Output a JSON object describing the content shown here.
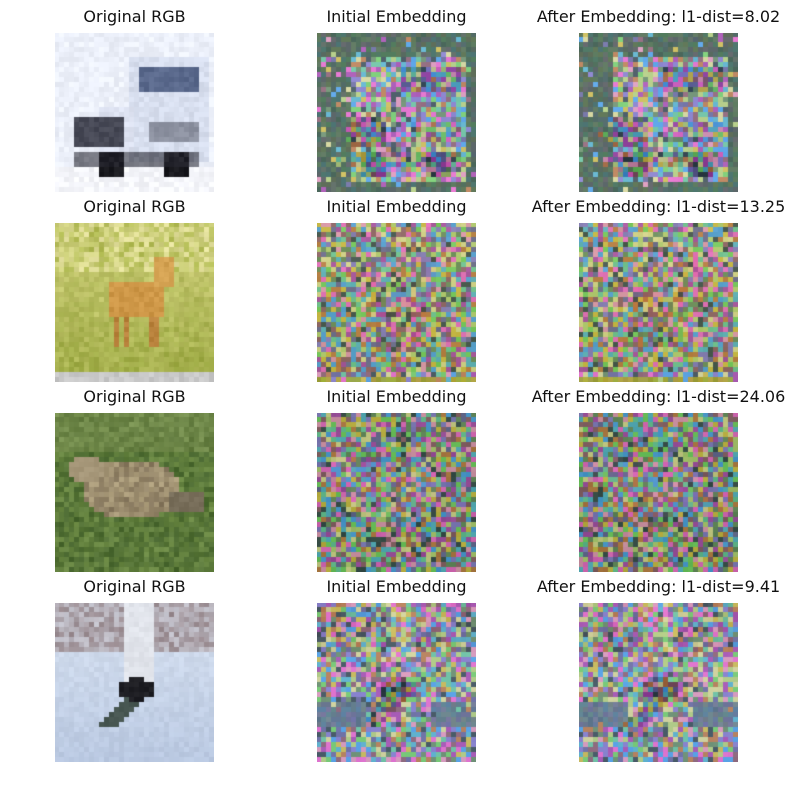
{
  "rows": [
    {
      "original": {
        "title": "Original RGB",
        "subject": "white truck"
      },
      "initial": {
        "title": "Initial Embedding"
      },
      "after": {
        "title": "After Embedding: l1-dist=8.02",
        "l1_dist": 8.02
      }
    },
    {
      "original": {
        "title": "Original RGB",
        "subject": "deer in grass"
      },
      "initial": {
        "title": "Initial Embedding"
      },
      "after": {
        "title": "After Embedding: l1-dist=13.25",
        "l1_dist": 13.25
      }
    },
    {
      "original": {
        "title": "Original RGB",
        "subject": "bird on grass"
      },
      "initial": {
        "title": "Initial Embedding"
      },
      "after": {
        "title": "After Embedding: l1-dist=24.06",
        "l1_dist": 24.06
      }
    },
    {
      "original": {
        "title": "Original RGB",
        "subject": "airplane on snow"
      },
      "initial": {
        "title": "Initial Embedding"
      },
      "after": {
        "title": "After Embedding: l1-dist=9.41",
        "l1_dist": 9.41
      }
    }
  ]
}
